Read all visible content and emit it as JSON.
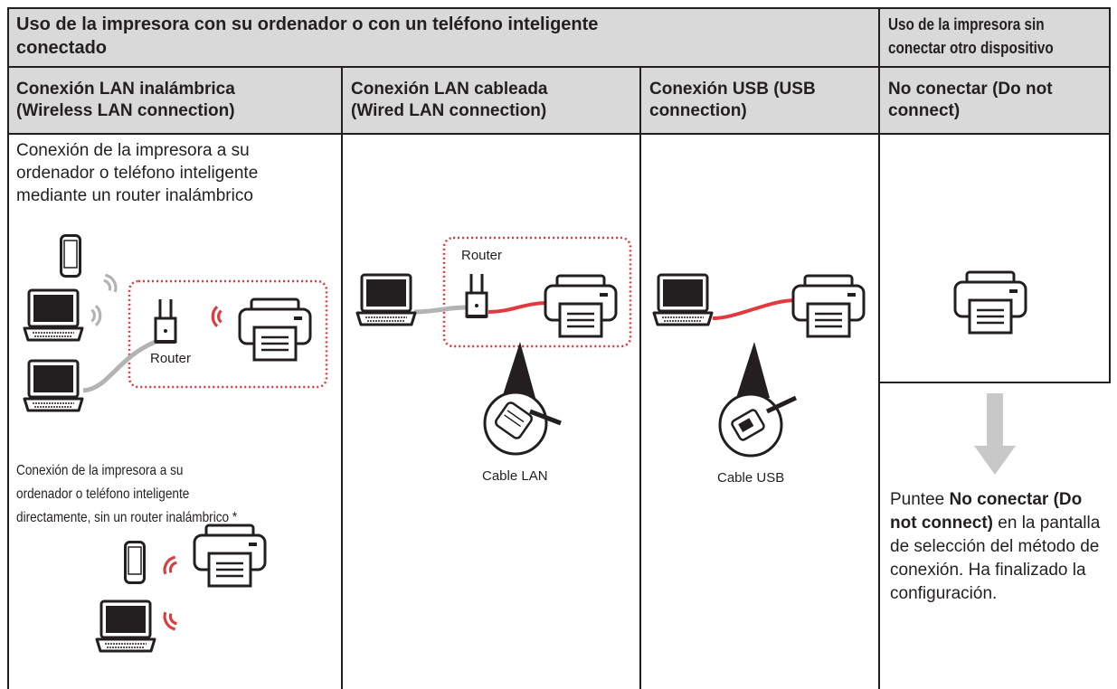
{
  "header": {
    "title": [
      "Uso de la impresora con su ordenador o con un teléfono inteligente",
      "conectado"
    ],
    "side_title": [
      "Uso de la impresora sin",
      "conectar otro dispositivo"
    ]
  },
  "columns": [
    {
      "title": [
        "Conexión LAN inalámbrica",
        "(Wireless LAN connection)"
      ],
      "text": [
        "Conexión de la impresora a su",
        "ordenador o teléfono inteligente",
        "mediante un router inalámbrico"
      ],
      "router_label": "Router",
      "direct_text": [
        "Conexión de la impresora a su",
        "ordenador o teléfono inteligente",
        "directamente, sin un router inalámbrico *"
      ]
    },
    {
      "title": [
        "Conexión LAN cableada",
        "(Wired LAN connection)"
      ],
      "router_label": "Router",
      "cable_label": "Cable LAN"
    },
    {
      "title": [
        "Conexión USB (USB",
        "connection)"
      ],
      "cable_label": "Cable USB"
    },
    {
      "title": [
        "No conectar (Do not",
        "connect)"
      ],
      "instruction": {
        "before": "Puntee",
        "bold": "No conectar (Do not connect)",
        "after": "en la pantalla de selección del método de conexión. Ha finalizado la configuración."
      }
    }
  ]
}
